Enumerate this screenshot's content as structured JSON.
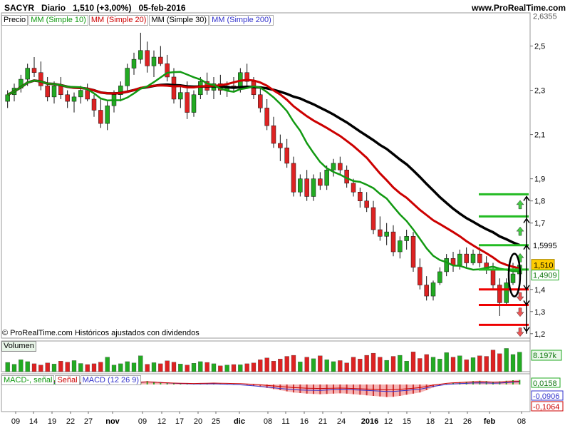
{
  "header": {
    "symbol": "SACYR",
    "period": "Diario",
    "price": "1,510 (+3,00%)",
    "date": "05-feb-2016",
    "site": "www.ProRealTime.com"
  },
  "legend": {
    "precio": "Precio",
    "mm10": "MM (Simple 10)",
    "mm20": "MM (Simple 20)",
    "mm30": "MM (Simple 30)",
    "mm200": "MM (Simple 200)"
  },
  "footer": "© ProRealTime.com Históricos ajustados con dividendos",
  "volume": {
    "label": "Volumen",
    "value_label": "8.197k"
  },
  "macd": {
    "l1": "MACD-, señal",
    "l2": "Señal",
    "l3": "MACD (12 26 9)",
    "v1": "0,0158",
    "v2": "-0,0906",
    "v3": "-0,1064"
  },
  "colors": {
    "up": "#22aa22",
    "down": "#dd2222",
    "mm10": "#119911",
    "mm20": "#cc0000",
    "mm30": "#000000",
    "mm200": "#3333cc",
    "price_tag": "#ffcc00"
  },
  "chart_data": {
    "type": "candlestick",
    "ylim": [
      1.18,
      2.65
    ],
    "y_ticks": [
      "2,5",
      "2,3",
      "2,1",
      "1,9",
      "1,8",
      "1,7",
      "1,4",
      "1,3",
      "1,2"
    ],
    "y_tick_values": [
      2.5,
      2.3,
      2.1,
      1.9,
      1.8,
      1.7,
      1.4,
      1.3,
      1.2
    ],
    "price_labels": [
      {
        "label": "2,6355",
        "value": 2.6355
      },
      {
        "label": "1,5995",
        "value": 1.5995
      },
      {
        "label": "1,510",
        "value": 1.51
      },
      {
        "label": "1,4909",
        "value": 1.4909
      }
    ],
    "x_ticks": [
      "09",
      "14",
      "19",
      "22",
      "27",
      "nov",
      "09",
      "12",
      "17",
      "20",
      "25",
      "dic",
      "08",
      "11",
      "16",
      "21",
      "24",
      "2016",
      "12",
      "15",
      "18",
      "21",
      "26",
      "feb",
      "08"
    ],
    "x_tick_pos": [
      22,
      47,
      73,
      99,
      124,
      158,
      200,
      227,
      252,
      278,
      303,
      336,
      376,
      401,
      427,
      453,
      479,
      519,
      545,
      571,
      604,
      630,
      656,
      687,
      732
    ],
    "green_levels": [
      1.83,
      1.73,
      1.6,
      1.49
    ],
    "red_levels": [
      1.4,
      1.33,
      1.24
    ],
    "candles": [
      [
        2.25,
        2.3,
        2.22,
        2.28
      ],
      [
        2.28,
        2.33,
        2.25,
        2.31
      ],
      [
        2.31,
        2.37,
        2.29,
        2.35
      ],
      [
        2.35,
        2.42,
        2.32,
        2.4
      ],
      [
        2.4,
        2.45,
        2.36,
        2.38
      ],
      [
        2.38,
        2.43,
        2.3,
        2.32
      ],
      [
        2.32,
        2.36,
        2.25,
        2.27
      ],
      [
        2.27,
        2.34,
        2.24,
        2.32
      ],
      [
        2.32,
        2.36,
        2.26,
        2.28
      ],
      [
        2.28,
        2.3,
        2.22,
        2.25
      ],
      [
        2.25,
        2.29,
        2.2,
        2.27
      ],
      [
        2.27,
        2.32,
        2.24,
        2.3
      ],
      [
        2.3,
        2.33,
        2.25,
        2.26
      ],
      [
        2.26,
        2.28,
        2.18,
        2.21
      ],
      [
        2.21,
        2.26,
        2.13,
        2.15
      ],
      [
        2.15,
        2.25,
        2.12,
        2.23
      ],
      [
        2.23,
        2.3,
        2.2,
        2.28
      ],
      [
        2.28,
        2.34,
        2.25,
        2.32
      ],
      [
        2.32,
        2.42,
        2.3,
        2.4
      ],
      [
        2.4,
        2.47,
        2.37,
        2.44
      ],
      [
        2.44,
        2.56,
        2.42,
        2.48
      ],
      [
        2.48,
        2.52,
        2.38,
        2.41
      ],
      [
        2.41,
        2.48,
        2.36,
        2.45
      ],
      [
        2.45,
        2.5,
        2.41,
        2.42
      ],
      [
        2.42,
        2.46,
        2.34,
        2.36
      ],
      [
        2.36,
        2.4,
        2.24,
        2.26
      ],
      [
        2.26,
        2.32,
        2.22,
        2.29
      ],
      [
        2.29,
        2.34,
        2.17,
        2.2
      ],
      [
        2.2,
        2.3,
        2.18,
        2.28
      ],
      [
        2.28,
        2.36,
        2.26,
        2.34
      ],
      [
        2.34,
        2.38,
        2.28,
        2.3
      ],
      [
        2.3,
        2.36,
        2.26,
        2.33
      ],
      [
        2.33,
        2.37,
        2.28,
        2.3
      ],
      [
        2.3,
        2.34,
        2.27,
        2.32
      ],
      [
        2.32,
        2.36,
        2.29,
        2.31
      ],
      [
        2.31,
        2.4,
        2.29,
        2.38
      ],
      [
        2.38,
        2.42,
        2.32,
        2.34
      ],
      [
        2.34,
        2.36,
        2.26,
        2.28
      ],
      [
        2.28,
        2.31,
        2.2,
        2.22
      ],
      [
        2.22,
        2.26,
        2.12,
        2.14
      ],
      [
        2.14,
        2.18,
        2.04,
        2.06
      ],
      [
        2.06,
        2.1,
        1.98,
        2.04
      ],
      [
        2.04,
        2.08,
        1.95,
        1.97
      ],
      [
        1.97,
        2.0,
        1.82,
        1.84
      ],
      [
        1.84,
        1.92,
        1.82,
        1.9
      ],
      [
        1.9,
        1.94,
        1.8,
        1.82
      ],
      [
        1.82,
        1.92,
        1.8,
        1.9
      ],
      [
        1.9,
        1.93,
        1.85,
        1.87
      ],
      [
        1.87,
        1.96,
        1.85,
        1.94
      ],
      [
        1.94,
        1.99,
        1.91,
        1.97
      ],
      [
        1.97,
        2.0,
        1.92,
        1.94
      ],
      [
        1.94,
        1.96,
        1.86,
        1.88
      ],
      [
        1.88,
        1.9,
        1.82,
        1.84
      ],
      [
        1.84,
        1.86,
        1.77,
        1.8
      ],
      [
        1.8,
        1.84,
        1.75,
        1.77
      ],
      [
        1.77,
        1.8,
        1.65,
        1.67
      ],
      [
        1.67,
        1.73,
        1.62,
        1.64
      ],
      [
        1.64,
        1.7,
        1.6,
        1.66
      ],
      [
        1.66,
        1.69,
        1.55,
        1.57
      ],
      [
        1.57,
        1.64,
        1.54,
        1.62
      ],
      [
        1.62,
        1.67,
        1.58,
        1.64
      ],
      [
        1.64,
        1.66,
        1.48,
        1.5
      ],
      [
        1.5,
        1.54,
        1.4,
        1.42
      ],
      [
        1.42,
        1.46,
        1.35,
        1.37
      ],
      [
        1.37,
        1.44,
        1.35,
        1.43
      ],
      [
        1.43,
        1.5,
        1.42,
        1.48
      ],
      [
        1.48,
        1.56,
        1.46,
        1.54
      ],
      [
        1.54,
        1.57,
        1.48,
        1.51
      ],
      [
        1.51,
        1.58,
        1.49,
        1.56
      ],
      [
        1.56,
        1.59,
        1.5,
        1.52
      ],
      [
        1.52,
        1.58,
        1.51,
        1.56
      ],
      [
        1.56,
        1.59,
        1.5,
        1.52
      ],
      [
        1.52,
        1.55,
        1.47,
        1.49
      ],
      [
        1.49,
        1.52,
        1.4,
        1.42
      ],
      [
        1.42,
        1.45,
        1.28,
        1.34
      ],
      [
        1.34,
        1.45,
        1.33,
        1.43
      ],
      [
        1.43,
        1.52,
        1.42,
        1.47
      ],
      [
        1.47,
        1.53,
        1.46,
        1.51
      ]
    ],
    "volume": [
      0.35,
      0.28,
      0.45,
      0.38,
      0.3,
      0.25,
      0.33,
      0.29,
      0.4,
      0.36,
      0.42,
      0.31,
      0.27,
      0.3,
      0.36,
      0.55,
      0.25,
      0.3,
      0.38,
      0.33,
      0.6,
      0.28,
      0.34,
      0.3,
      0.41,
      0.36,
      0.29,
      0.25,
      0.32,
      0.38,
      0.35,
      0.3,
      0.22,
      0.25,
      0.27,
      0.26,
      0.3,
      0.33,
      0.45,
      0.52,
      0.4,
      0.48,
      0.58,
      0.62,
      0.37,
      0.55,
      0.49,
      0.6,
      0.45,
      0.38,
      0.42,
      0.33,
      0.55,
      0.48,
      0.62,
      0.7,
      0.55,
      0.43,
      0.58,
      0.62,
      0.4,
      0.75,
      0.5,
      0.65,
      0.55,
      0.48,
      0.72,
      0.55,
      0.6,
      0.45,
      0.53,
      0.6,
      0.58,
      0.82,
      0.68,
      0.88,
      0.65,
      0.74
    ],
    "macd_hist": [
      0.02,
      0.025,
      0.03,
      0.032,
      0.03,
      0.025,
      0.02,
      0.015,
      0.012,
      0.01,
      0.008,
      0.006,
      0.004,
      0.002,
      0.0,
      -0.002,
      0.0,
      0.002,
      0.005,
      0.008,
      0.01,
      0.012,
      0.01,
      0.008,
      0.006,
      0.004,
      0.003,
      0.002,
      0.001,
      0.002,
      0.003,
      0.004,
      0.003,
      0.002,
      0.001,
      0.0,
      -0.002,
      -0.005,
      -0.008,
      -0.012,
      -0.016,
      -0.02,
      -0.024,
      -0.028,
      -0.03,
      -0.032,
      -0.033,
      -0.034,
      -0.033,
      -0.032,
      -0.031,
      -0.032,
      -0.034,
      -0.036,
      -0.038,
      -0.04,
      -0.042,
      -0.044,
      -0.043,
      -0.04,
      -0.036,
      -0.032,
      -0.028,
      -0.02,
      -0.01,
      -0.004,
      0.002,
      0.006,
      0.008,
      0.01,
      0.012,
      0.013,
      0.012,
      0.01,
      0.011,
      0.013,
      0.015,
      0.016
    ]
  }
}
